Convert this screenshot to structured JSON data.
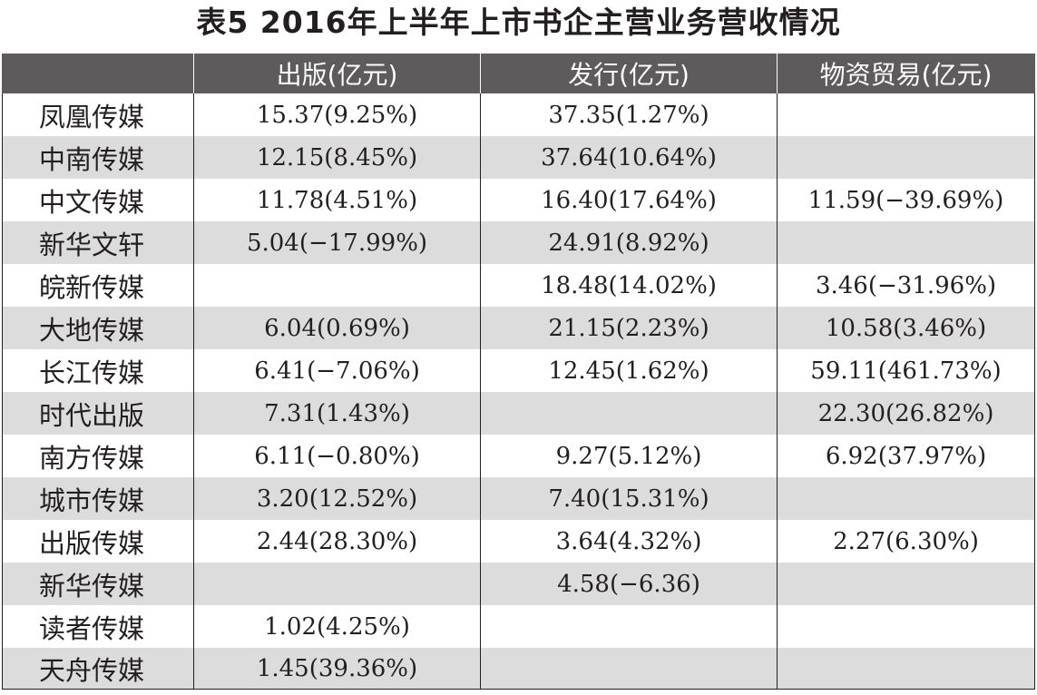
{
  "title": "表5  2016年上半年上市书企主营业务营收情况",
  "table": {
    "headers": [
      "",
      "出版(亿元)",
      "发行(亿元)",
      "物资贸易(亿元)"
    ],
    "rows": [
      {
        "company": "凤凰传媒",
        "publishing": "15.37(9.25%)",
        "distribution": "37.35(1.27%)",
        "trade": ""
      },
      {
        "company": "中南传媒",
        "publishing": "12.15(8.45%)",
        "distribution": "37.64(10.64%)",
        "trade": ""
      },
      {
        "company": "中文传媒",
        "publishing": "11.78(4.51%)",
        "distribution": "16.40(17.64%)",
        "trade": "11.59(−39.69%)"
      },
      {
        "company": "新华文轩",
        "publishing": "5.04(−17.99%)",
        "distribution": "24.91(8.92%)",
        "trade": ""
      },
      {
        "company": "皖新传媒",
        "publishing": "",
        "distribution": "18.48(14.02%)",
        "trade": "3.46(−31.96%)"
      },
      {
        "company": "大地传媒",
        "publishing": "6.04(0.69%)",
        "distribution": "21.15(2.23%)",
        "trade": "10.58(3.46%)"
      },
      {
        "company": "长江传媒",
        "publishing": "6.41(−7.06%)",
        "distribution": "12.45(1.62%)",
        "trade": "59.11(461.73%)"
      },
      {
        "company": "时代出版",
        "publishing": "7.31(1.43%)",
        "distribution": "",
        "trade": "22.30(26.82%)"
      },
      {
        "company": "南方传媒",
        "publishing": "6.11(−0.80%)",
        "distribution": "9.27(5.12%)",
        "trade": "6.92(37.97%)"
      },
      {
        "company": "城市传媒",
        "publishing": "3.20(12.52%)",
        "distribution": "7.40(15.31%)",
        "trade": ""
      },
      {
        "company": "出版传媒",
        "publishing": "2.44(28.30%)",
        "distribution": "3.64(4.32%)",
        "trade": "2.27(6.30%)"
      },
      {
        "company": "新华传媒",
        "publishing": "",
        "distribution": "4.58(−6.36)",
        "trade": ""
      },
      {
        "company": "读者传媒",
        "publishing": "1.02(4.25%)",
        "distribution": "",
        "trade": ""
      },
      {
        "company": "天舟传媒",
        "publishing": "1.45(39.36%)",
        "distribution": "",
        "trade": ""
      }
    ]
  },
  "colors": {
    "header_bg": "#5d5b5c",
    "band_bg": "#dcdcdc",
    "text": "#231f20"
  }
}
